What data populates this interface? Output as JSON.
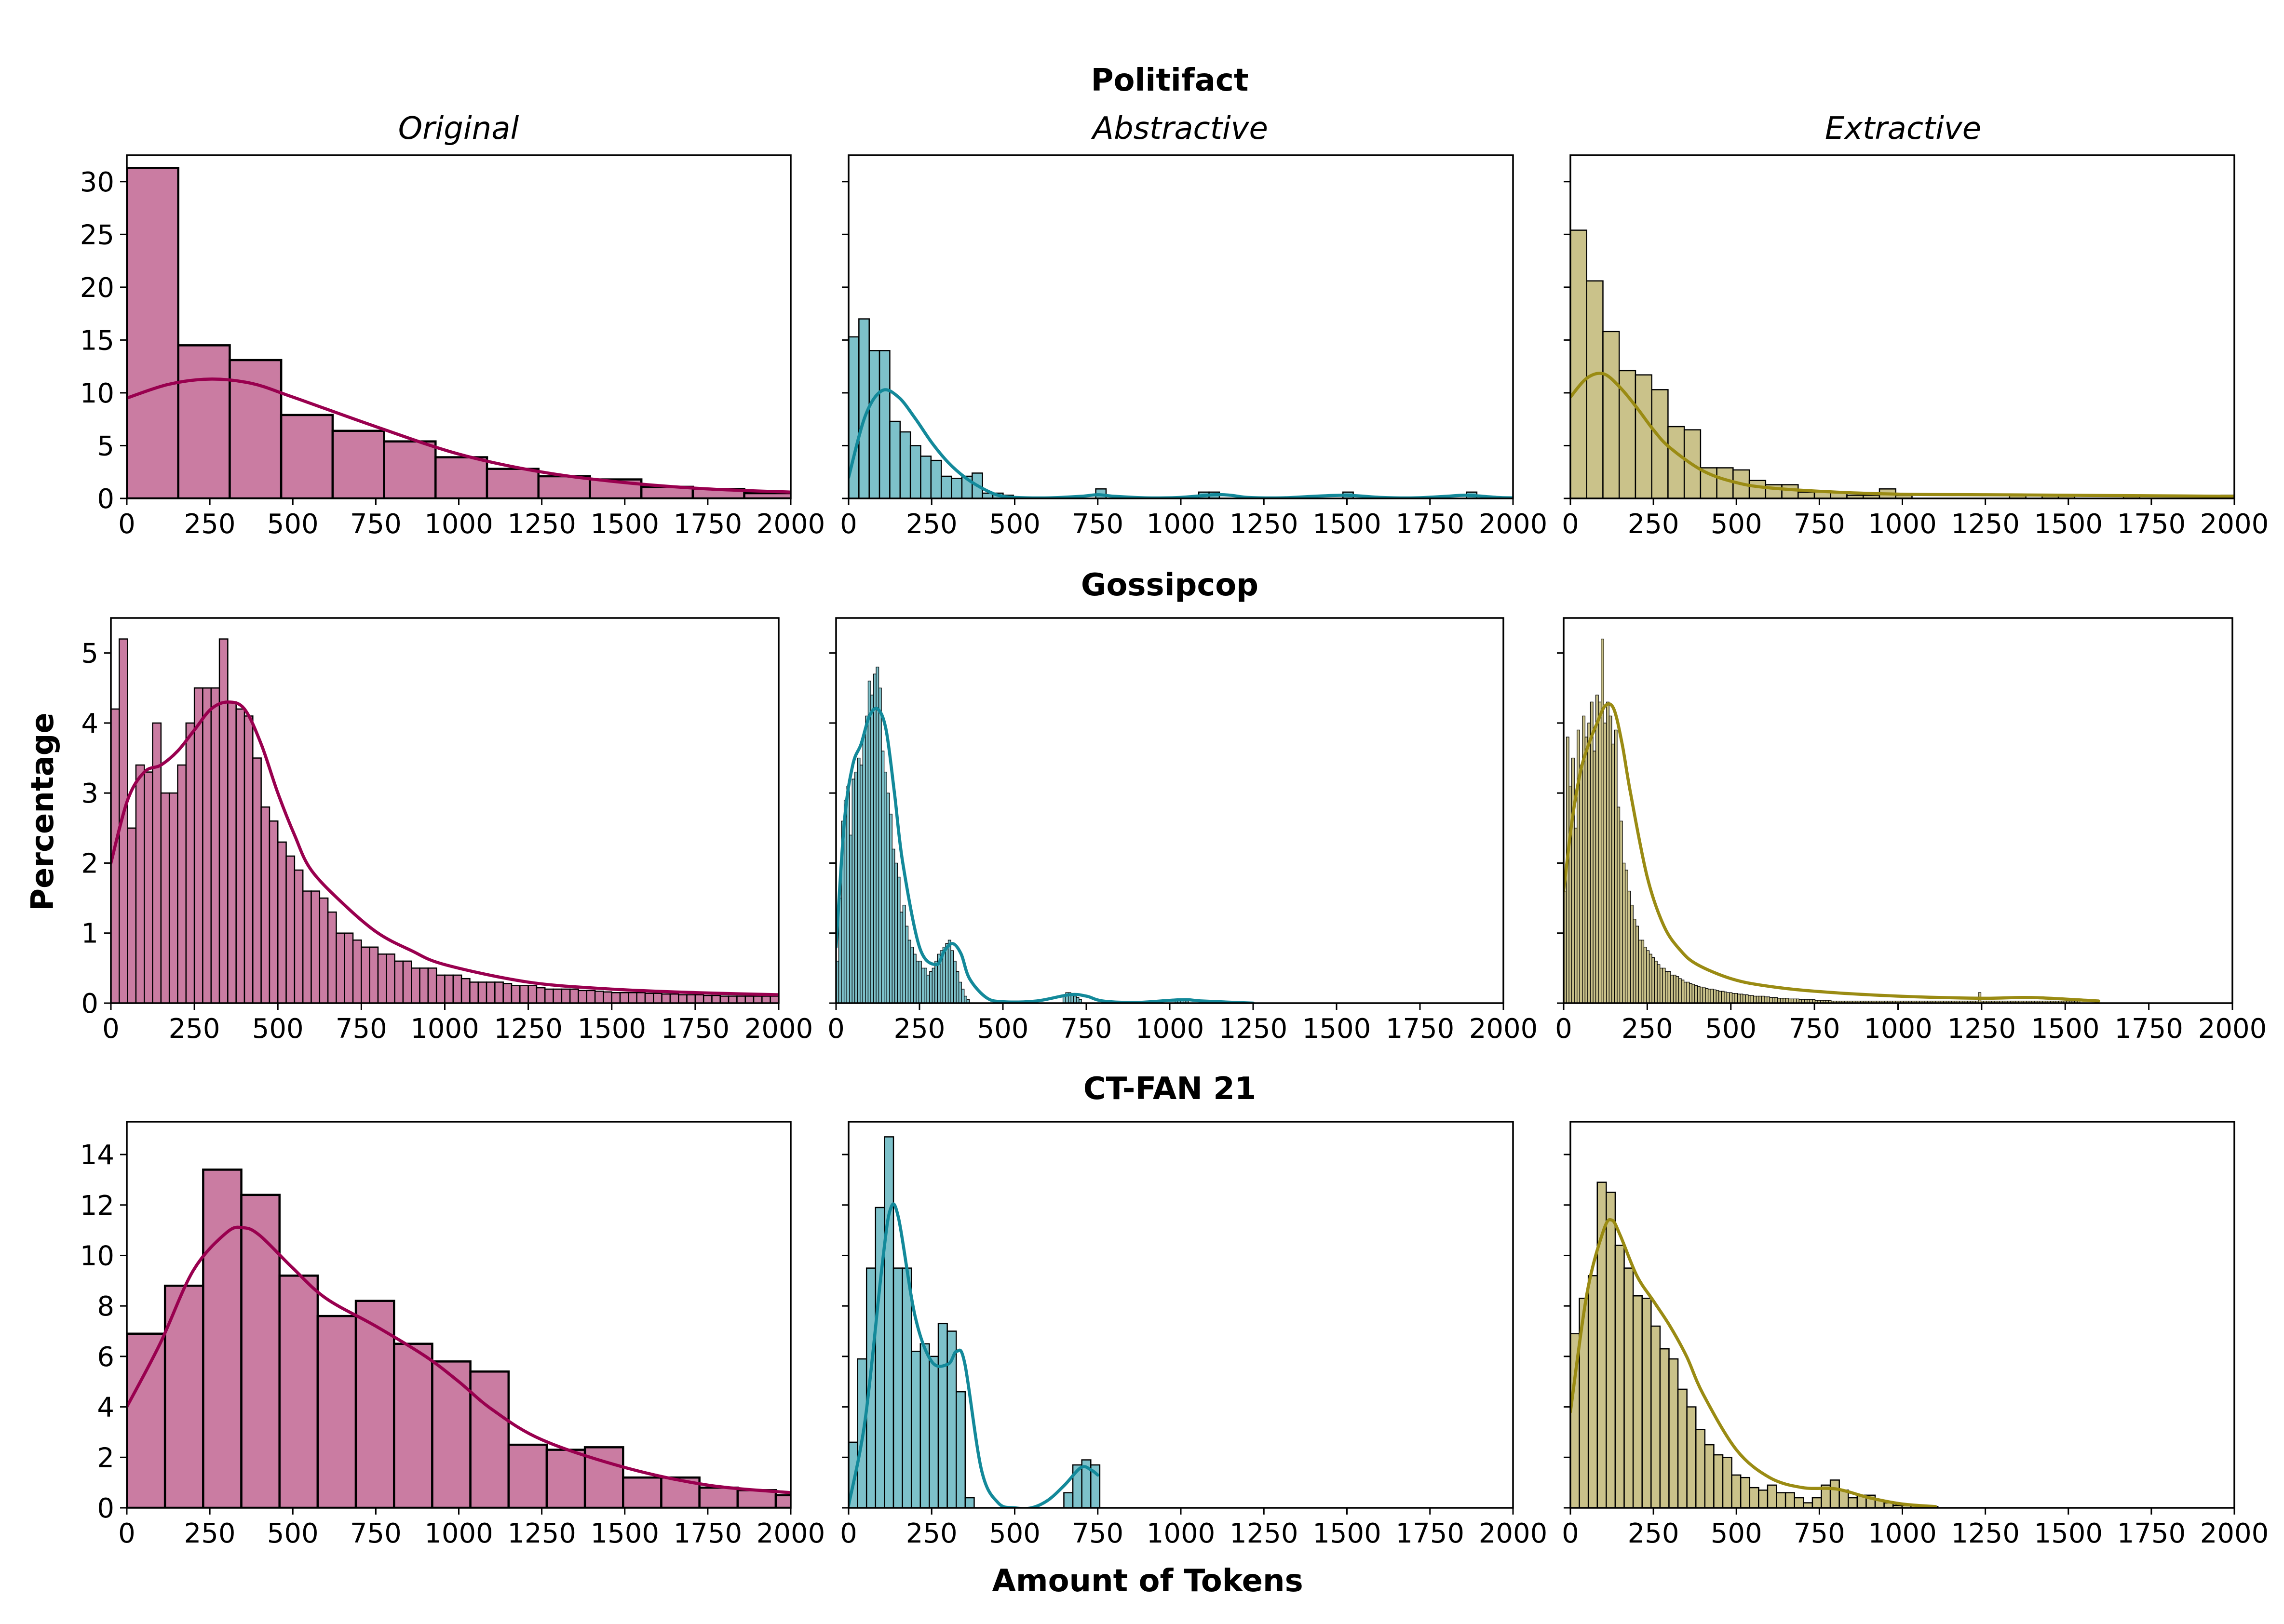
{
  "colors": {
    "original": "#99004F",
    "original_fill": "#CA7CA2",
    "abstractive": "#13899A",
    "abstractive_fill": "#7DC1CA",
    "extractive": "#9A8B13",
    "extractive_fill": "#CAC28A",
    "bar_edge": "#000000"
  },
  "labels": {
    "ylabel": "Percentage",
    "xlabel": "Amount of Tokens",
    "columns": [
      "Original",
      "Abstractive",
      "Extractive"
    ],
    "rows": [
      "Politifact",
      "Gossipcop",
      "CT-FAN 21"
    ]
  },
  "chart_data": [
    {
      "type": "bar",
      "panel": "r0c0",
      "row_title": "Politifact",
      "column_title": "Original",
      "color_key": "original",
      "xlim": [
        0,
        2000
      ],
      "ylim": [
        0,
        32.5
      ],
      "xticks": [
        0,
        250,
        500,
        750,
        1000,
        1250,
        1500,
        1750,
        2000
      ],
      "yticks": [
        0,
        5,
        10,
        15,
        20,
        25,
        30
      ],
      "show_yticklabels": true,
      "bin_start": 0,
      "bin_width": 155,
      "values": [
        31.3,
        14.5,
        13.1,
        7.9,
        6.4,
        5.4,
        3.9,
        2.8,
        2.1,
        1.8,
        1.1,
        0.9,
        0.5,
        0.3
      ],
      "kde_x": [
        0,
        125,
        250,
        375,
        500,
        750,
        1000,
        1250,
        1500,
        1750,
        2000
      ],
      "kde_y": [
        9.5,
        10.8,
        11.3,
        10.9,
        9.6,
        6.8,
        4.2,
        2.5,
        1.5,
        0.9,
        0.6
      ]
    },
    {
      "type": "bar",
      "panel": "r0c1",
      "row_title": "Politifact",
      "column_title": "Abstractive",
      "color_key": "abstractive",
      "xlim": [
        0,
        2000
      ],
      "ylim": [
        0,
        32.5
      ],
      "xticks": [
        0,
        250,
        500,
        750,
        1000,
        1250,
        1500,
        1750,
        2000
      ],
      "yticks": [
        0,
        5,
        10,
        15,
        20,
        25,
        30
      ],
      "show_yticklabels": false,
      "bin_start": 0,
      "bin_width": 31,
      "values": [
        15.3,
        17.0,
        14.0,
        14.0,
        7.3,
        6.3,
        5.0,
        4.0,
        3.6,
        2.1,
        1.9,
        2.1,
        2.4,
        0.5,
        0.5,
        0.3,
        0,
        0,
        0,
        0,
        0,
        0,
        0,
        0,
        0.9,
        0,
        0,
        0,
        0,
        0,
        0,
        0,
        0,
        0,
        0.6,
        0.6,
        0,
        0,
        0,
        0,
        0,
        0,
        0,
        0,
        0,
        0,
        0,
        0,
        0.6,
        0,
        0,
        0,
        0,
        0,
        0,
        0,
        0,
        0,
        0,
        0,
        0.6
      ],
      "kde_x": [
        0,
        50,
        100,
        150,
        200,
        250,
        300,
        350,
        400,
        450,
        500,
        600,
        700,
        750,
        800,
        900,
        1000,
        1100,
        1150,
        1200,
        1300,
        1400,
        1500,
        1600,
        1700,
        1800,
        1860,
        1950,
        2000
      ],
      "kde_y": [
        2.0,
        7.8,
        10.2,
        9.6,
        7.6,
        5.3,
        3.4,
        2.0,
        1.0,
        0.3,
        0.1,
        0.05,
        0.2,
        0.35,
        0.2,
        0.05,
        0.1,
        0.35,
        0.3,
        0.1,
        0.05,
        0.2,
        0.3,
        0.1,
        0.05,
        0.2,
        0.3,
        0.1,
        0.05
      ]
    },
    {
      "type": "bar",
      "panel": "r0c2",
      "row_title": "Politifact",
      "column_title": "Extractive",
      "color_key": "extractive",
      "xlim": [
        0,
        2000
      ],
      "ylim": [
        0,
        32.5
      ],
      "xticks": [
        0,
        250,
        500,
        750,
        1000,
        1250,
        1500,
        1750,
        2000
      ],
      "yticks": [
        0,
        5,
        10,
        15,
        20,
        25,
        30
      ],
      "show_yticklabels": false,
      "bin_start": 0,
      "bin_width": 49,
      "values": [
        25.4,
        20.6,
        15.8,
        12.1,
        11.7,
        10.3,
        6.8,
        6.5,
        2.9,
        2.9,
        2.7,
        1.7,
        1.3,
        1.3,
        0.6,
        0.6,
        0.6,
        0.3,
        0.3,
        0.9,
        0.3,
        0,
        0,
        0,
        0,
        0,
        0,
        0.3,
        0,
        0.3,
        0.3,
        0,
        0,
        0,
        0.3,
        0,
        0,
        0,
        0,
        0,
        0.3
      ],
      "kde_x": [
        0,
        50,
        100,
        150,
        200,
        250,
        300,
        400,
        500,
        600,
        800,
        1000,
        1250,
        1500,
        1750,
        2000
      ],
      "kde_y": [
        9.6,
        11.4,
        11.8,
        10.5,
        8.6,
        6.5,
        4.8,
        2.6,
        1.5,
        1.0,
        0.6,
        0.4,
        0.35,
        0.3,
        0.25,
        0.2
      ]
    },
    {
      "type": "bar",
      "panel": "r1c0",
      "row_title": "Gossipcop",
      "column_title": "Original",
      "color_key": "original",
      "xlim": [
        0,
        2000
      ],
      "ylim": [
        0,
        5.5
      ],
      "xticks": [
        0,
        250,
        500,
        750,
        1000,
        1250,
        1500,
        1750,
        2000
      ],
      "yticks": [
        0,
        1,
        2,
        3,
        4,
        5
      ],
      "show_yticklabels": true,
      "bin_start": 0,
      "bin_width": 25,
      "values": [
        4.2,
        5.2,
        2.5,
        3.4,
        3.3,
        4.0,
        3.0,
        3.0,
        3.4,
        4.0,
        4.5,
        4.5,
        4.5,
        5.2,
        4.3,
        4.2,
        4.1,
        3.5,
        2.8,
        2.6,
        2.3,
        2.1,
        1.9,
        1.6,
        1.6,
        1.5,
        1.3,
        1.0,
        1.0,
        0.9,
        0.8,
        0.8,
        0.7,
        0.7,
        0.6,
        0.6,
        0.5,
        0.5,
        0.5,
        0.4,
        0.4,
        0.4,
        0.35,
        0.3,
        0.3,
        0.3,
        0.3,
        0.28,
        0.25,
        0.25,
        0.25,
        0.22,
        0.2,
        0.2,
        0.2,
        0.2,
        0.18,
        0.18,
        0.17,
        0.16,
        0.15,
        0.15,
        0.15,
        0.15,
        0.14,
        0.14,
        0.13,
        0.13,
        0.12,
        0.12,
        0.12,
        0.11,
        0.11,
        0.1,
        0.1,
        0.1,
        0.1,
        0.1,
        0.1,
        0.1
      ],
      "kde_x": [
        0,
        50,
        100,
        150,
        200,
        250,
        300,
        350,
        400,
        450,
        500,
        550,
        600,
        700,
        800,
        900,
        1000,
        1250,
        1500,
        1750,
        2000
      ],
      "kde_y": [
        2.0,
        2.9,
        3.3,
        3.4,
        3.6,
        3.9,
        4.2,
        4.3,
        4.2,
        3.7,
        3.0,
        2.4,
        1.9,
        1.4,
        1.0,
        0.75,
        0.55,
        0.3,
        0.2,
        0.15,
        0.12
      ]
    },
    {
      "type": "bar",
      "panel": "r1c1",
      "row_title": "Gossipcop",
      "column_title": "Abstractive",
      "color_key": "abstractive",
      "xlim": [
        0,
        2000
      ],
      "ylim": [
        0,
        5.5
      ],
      "xticks": [
        0,
        250,
        500,
        750,
        1000,
        1250,
        1500,
        1750,
        2000
      ],
      "yticks": [
        0,
        1,
        2,
        3,
        4,
        5
      ],
      "show_yticklabels": false,
      "bin_start": 0,
      "bin_width": 8,
      "values": [
        0.6,
        1.5,
        2.6,
        2.9,
        3.1,
        2.4,
        3.2,
        3.3,
        3.5,
        3.4,
        3.8,
        4.1,
        4.6,
        4.4,
        4.7,
        4.8,
        4.5,
        3.6,
        3.3,
        3.0,
        2.7,
        2.2,
        2.0,
        1.8,
        1.3,
        1.4,
        1.1,
        0.9,
        0.8,
        0.7,
        0.6,
        0.6,
        0.5,
        0.5,
        0.4,
        0.45,
        0.5,
        0.6,
        0.7,
        0.75,
        0.8,
        0.85,
        0.9,
        0.75,
        0.6,
        0.45,
        0.3,
        0.2,
        0.1,
        0.05,
        0,
        0,
        0,
        0,
        0,
        0,
        0,
        0,
        0,
        0,
        0,
        0,
        0,
        0,
        0,
        0,
        0,
        0,
        0,
        0,
        0,
        0,
        0,
        0,
        0,
        0,
        0,
        0,
        0,
        0,
        0,
        0,
        0,
        0,
        0,
        0.1,
        0.15,
        0.15,
        0.12,
        0.1,
        0.08,
        0.05,
        0,
        0,
        0,
        0,
        0,
        0,
        0,
        0,
        0,
        0,
        0,
        0,
        0,
        0,
        0,
        0,
        0,
        0,
        0,
        0,
        0,
        0,
        0,
        0,
        0,
        0,
        0,
        0,
        0,
        0,
        0,
        0,
        0,
        0,
        0,
        0.05,
        0.05,
        0.04,
        0.04,
        0.03
      ],
      "kde_x": [
        0,
        25,
        50,
        75,
        100,
        125,
        150,
        175,
        200,
        250,
        300,
        325,
        350,
        375,
        400,
        450,
        500,
        600,
        700,
        750,
        800,
        900,
        1000,
        1050,
        1100,
        1250
      ],
      "kde_y": [
        0.8,
        2.6,
        3.4,
        3.7,
        4.1,
        4.2,
        3.9,
        3.0,
        2.0,
        0.8,
        0.55,
        0.75,
        0.85,
        0.7,
        0.35,
        0.08,
        0.02,
        0.03,
        0.12,
        0.1,
        0.03,
        0.01,
        0.04,
        0.05,
        0.03,
        0.0
      ]
    },
    {
      "type": "bar",
      "panel": "r1c2",
      "row_title": "Gossipcop",
      "column_title": "Extractive",
      "color_key": "extractive",
      "xlim": [
        0,
        2000
      ],
      "ylim": [
        0,
        5.5
      ],
      "xticks": [
        0,
        250,
        500,
        750,
        1000,
        1250,
        1500,
        1750,
        2000
      ],
      "yticks": [
        0,
        1,
        2,
        3,
        4,
        5
      ],
      "show_yticklabels": false,
      "bin_start": 0,
      "bin_width": 8,
      "values": [
        1.6,
        3.8,
        3.1,
        3.5,
        2.5,
        3.9,
        3.4,
        4.1,
        3.8,
        4.0,
        4.3,
        3.6,
        4.4,
        4.3,
        5.2,
        4.0,
        4.3,
        4.1,
        3.7,
        3.9,
        2.8,
        2.6,
        2.0,
        1.9,
        1.6,
        1.4,
        1.2,
        1.1,
        0.9,
        0.9,
        0.8,
        0.75,
        0.7,
        0.65,
        0.6,
        0.55,
        0.5,
        0.5,
        0.45,
        0.45,
        0.4,
        0.4,
        0.38,
        0.35,
        0.33,
        0.3,
        0.3,
        0.28,
        0.27,
        0.25,
        0.24,
        0.23,
        0.22,
        0.21,
        0.2,
        0.2,
        0.19,
        0.18,
        0.17,
        0.17,
        0.16,
        0.15,
        0.15,
        0.14,
        0.14,
        0.13,
        0.13,
        0.12,
        0.12,
        0.11,
        0.11,
        0.1,
        0.1,
        0.1,
        0.1,
        0.09,
        0.09,
        0.08,
        0.08,
        0.08,
        0.07,
        0.07,
        0.07,
        0.07,
        0.06,
        0.06,
        0.06,
        0.06,
        0.05,
        0.05,
        0.05,
        0.05,
        0.05,
        0.05,
        0.04,
        0.04,
        0.04,
        0.04,
        0.04,
        0.04,
        0.03,
        0.03,
        0.03,
        0.03,
        0.03,
        0.03,
        0.03,
        0.03,
        0.03,
        0.03,
        0.03,
        0.03,
        0.03,
        0.03,
        0.03,
        0.03,
        0.03,
        0.03,
        0.03,
        0.03,
        0.03,
        0.03,
        0.03,
        0.03,
        0.03,
        0.03,
        0.03,
        0.03,
        0.03,
        0.03,
        0.03,
        0.03,
        0.03,
        0.03,
        0.03,
        0.03,
        0.03,
        0.03,
        0.03,
        0.03,
        0.03,
        0.03,
        0.03,
        0.03,
        0.03,
        0.03,
        0.03,
        0.03,
        0.03,
        0.03,
        0.03,
        0.03,
        0.03,
        0.03,
        0.03,
        0.15,
        0.03,
        0.03,
        0.03,
        0.03,
        0.03,
        0.03,
        0.03,
        0.03,
        0.03,
        0.03,
        0.03,
        0.03,
        0.03,
        0.03,
        0.03,
        0.03,
        0.03,
        0.03,
        0.03,
        0.03,
        0.03,
        0.03,
        0.03,
        0.03,
        0.03,
        0.03,
        0.03,
        0.03,
        0.03,
        0.03,
        0.03,
        0.03,
        0.03,
        0.03,
        0.03,
        0.03,
        0.03
      ],
      "kde_x": [
        0,
        25,
        50,
        75,
        100,
        125,
        150,
        175,
        200,
        250,
        300,
        350,
        400,
        500,
        600,
        750,
        1000,
        1250,
        1400,
        1600
      ],
      "kde_y": [
        1.6,
        2.6,
        3.3,
        3.7,
        4.0,
        4.25,
        4.2,
        3.7,
        3.0,
        1.8,
        1.1,
        0.75,
        0.55,
        0.35,
        0.25,
        0.17,
        0.1,
        0.07,
        0.08,
        0.03
      ]
    },
    {
      "type": "bar",
      "panel": "r2c0",
      "row_title": "CT-FAN 21",
      "column_title": "Original",
      "color_key": "original",
      "xlim": [
        0,
        2000
      ],
      "ylim": [
        0,
        15.3
      ],
      "xticks": [
        0,
        250,
        500,
        750,
        1000,
        1250,
        1500,
        1750,
        2000
      ],
      "yticks": [
        0,
        2,
        4,
        6,
        8,
        10,
        12,
        14
      ],
      "show_yticklabels": true,
      "bin_start": 0,
      "bin_width": 115,
      "values": [
        6.9,
        8.8,
        13.4,
        12.4,
        9.2,
        7.6,
        8.2,
        6.5,
        5.8,
        5.4,
        2.5,
        2.3,
        2.4,
        1.2,
        1.2,
        0.8,
        0.7,
        0.5
      ],
      "kde_x": [
        0,
        100,
        200,
        300,
        350,
        400,
        500,
        600,
        750,
        900,
        1000,
        1100,
        1250,
        1500,
        1750,
        2000
      ],
      "kde_y": [
        4.0,
        6.5,
        9.4,
        10.9,
        11.1,
        10.8,
        9.5,
        8.3,
        7.2,
        6.0,
        5.0,
        3.9,
        2.7,
        1.6,
        0.9,
        0.6
      ]
    },
    {
      "type": "bar",
      "panel": "r2c1",
      "row_title": "CT-FAN 21",
      "column_title": "Abstractive",
      "color_key": "abstractive",
      "xlim": [
        0,
        2000
      ],
      "ylim": [
        0,
        15.3
      ],
      "xticks": [
        0,
        250,
        500,
        750,
        1000,
        1250,
        1500,
        1750,
        2000
      ],
      "yticks": [
        0,
        2,
        4,
        6,
        8,
        10,
        12,
        14
      ],
      "show_yticklabels": false,
      "bin_start": 0,
      "bin_width": 27,
      "values": [
        2.6,
        5.9,
        9.5,
        11.9,
        14.7,
        9.5,
        9.5,
        6.2,
        6.5,
        6.0,
        7.3,
        7.0,
        4.6,
        0.4,
        0,
        0,
        0,
        0,
        0,
        0,
        0,
        0,
        0,
        0,
        0.6,
        1.7,
        1.9,
        1.7
      ],
      "kde_x": [
        0,
        50,
        100,
        125,
        150,
        200,
        250,
        300,
        325,
        350,
        400,
        450,
        500,
        550,
        600,
        650,
        700,
        730,
        750
      ],
      "kde_y": [
        0.1,
        3.5,
        9.5,
        11.8,
        11.5,
        7.6,
        5.8,
        5.7,
        6.2,
        5.7,
        1.5,
        0.2,
        0.0,
        0.0,
        0.3,
        0.9,
        1.6,
        1.5,
        1.3
      ]
    },
    {
      "type": "bar",
      "panel": "r2c2",
      "row_title": "CT-FAN 21",
      "column_title": "Extractive",
      "color_key": "extractive",
      "xlim": [
        0,
        2000
      ],
      "ylim": [
        0,
        15.3
      ],
      "xticks": [
        0,
        250,
        500,
        750,
        1000,
        1250,
        1500,
        1750,
        2000
      ],
      "yticks": [
        0,
        2,
        4,
        6,
        8,
        10,
        12,
        14
      ],
      "show_yticklabels": false,
      "bin_start": 0,
      "bin_width": 27,
      "values": [
        6.9,
        8.3,
        9.2,
        12.9,
        12.5,
        10.4,
        9.5,
        8.4,
        8.3,
        7.2,
        6.3,
        5.9,
        4.7,
        4.0,
        3.1,
        2.5,
        2.1,
        2.0,
        1.3,
        1.2,
        0.8,
        0.7,
        0.9,
        0.6,
        0.6,
        0.4,
        0.2,
        0.4,
        0.9,
        1.1,
        0.7,
        0.4,
        0.5,
        0.5,
        0.3,
        0.2,
        0.1,
        0.1,
        0.1,
        0.1,
        0.05
      ],
      "kde_x": [
        0,
        50,
        100,
        125,
        150,
        200,
        250,
        300,
        350,
        400,
        500,
        600,
        700,
        800,
        900,
        1000,
        1100
      ],
      "kde_y": [
        3.8,
        8.5,
        11.0,
        11.4,
        10.8,
        9.2,
        8.2,
        7.2,
        6.0,
        4.5,
        2.3,
        1.2,
        0.8,
        0.75,
        0.4,
        0.15,
        0.05
      ]
    }
  ]
}
